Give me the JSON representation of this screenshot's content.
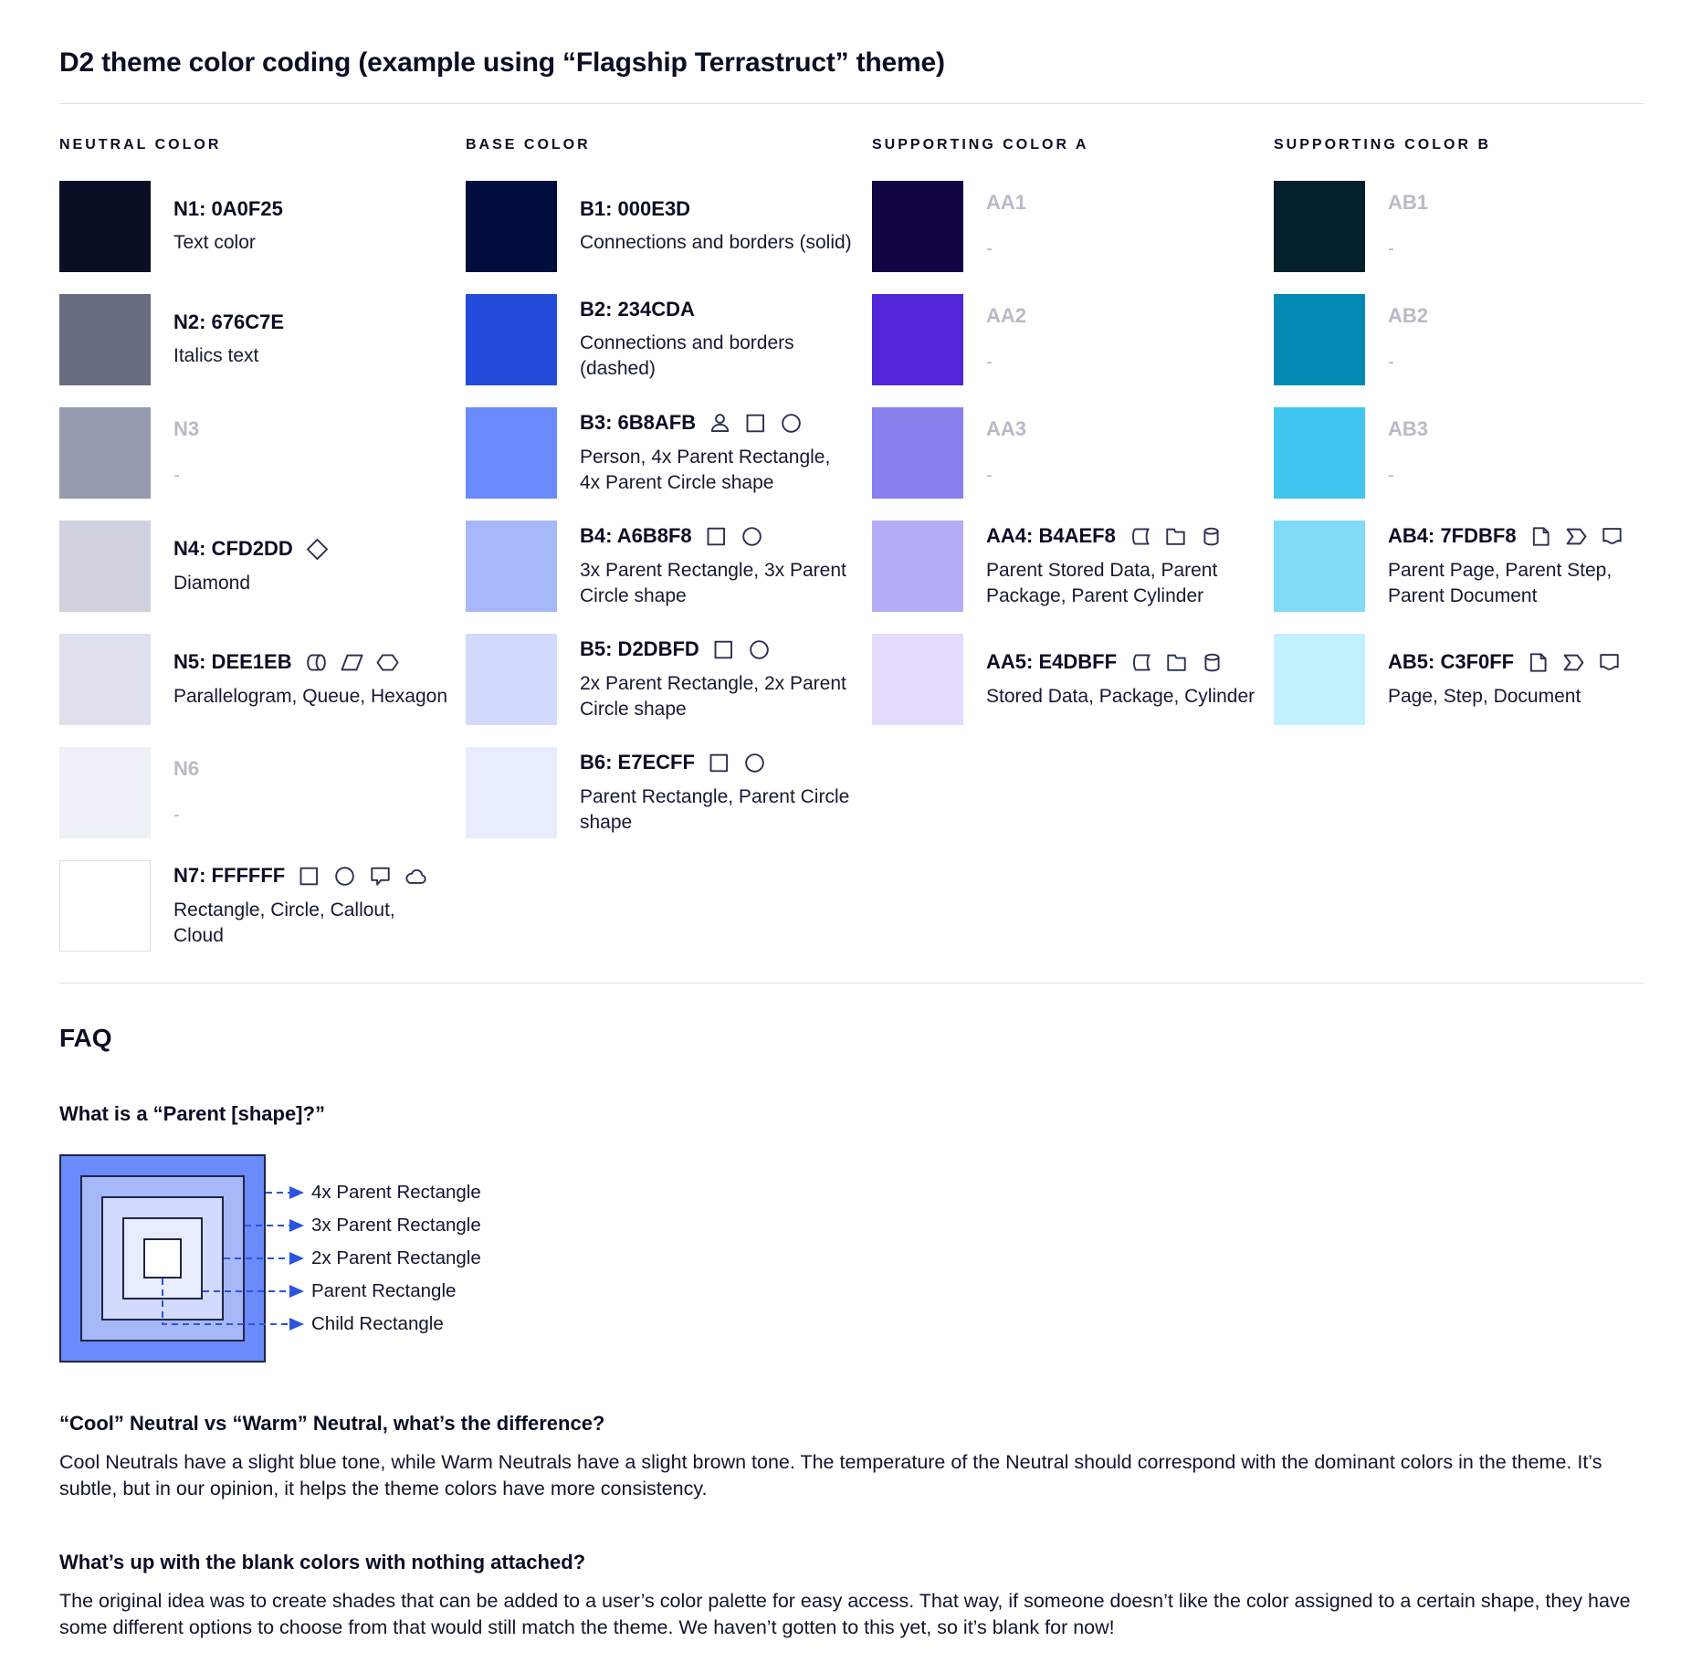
{
  "page": {
    "title": "D2 theme color coding (example using “Flagship Terrastruct” theme)"
  },
  "columns": [
    {
      "header": "NEUTRAL COLOR",
      "swatches": [
        {
          "label": "N1: 0A0F25",
          "hex": "#0A0F25",
          "description": "Text color",
          "icons": []
        },
        {
          "label": "N2: 676C7E",
          "hex": "#676C7E",
          "description": "Italics text",
          "icons": []
        },
        {
          "label": "N3",
          "hex": "#949BAE",
          "description": "-",
          "icons": [],
          "blank": true
        },
        {
          "label": "N4: CFD2DD",
          "hex": "#CFD2DD",
          "description": "Diamond",
          "icons": [
            "diamond"
          ]
        },
        {
          "label": "N5: DEE1EB",
          "hex": "#DEE1EB",
          "description": "Parallelogram, Queue, Hexagon",
          "icons": [
            "queue",
            "parallelogram",
            "hexagon"
          ]
        },
        {
          "label": "N6",
          "hex": "#EDF0F7",
          "description": "-",
          "icons": [],
          "blank": true
        },
        {
          "label": "N7: FFFFFF",
          "hex": "#FFFFFF",
          "description": "Rectangle, Circle, Callout, Cloud",
          "icons": [
            "rectangle",
            "circle",
            "callout",
            "cloud"
          ],
          "bordered": true
        }
      ]
    },
    {
      "header": "BASE COLOR",
      "swatches": [
        {
          "label": "B1: 000E3D",
          "hex": "#000E3D",
          "description": "Connections and borders (solid)",
          "icons": []
        },
        {
          "label": "B2: 234CDA",
          "hex": "#234CDA",
          "description": "Connections and borders (dashed)",
          "icons": []
        },
        {
          "label": "B3: 6B8AFB",
          "hex": "#6B8AFB",
          "description": "Person, 4x Parent Rectangle, 4x Parent Circle shape",
          "icons": [
            "person",
            "rectangle",
            "circle"
          ]
        },
        {
          "label": "B4: A6B8F8",
          "hex": "#A6B8F8",
          "description": "3x Parent Rectangle, 3x Parent Circle shape",
          "icons": [
            "rectangle",
            "circle"
          ]
        },
        {
          "label": "B5: D2DBFD",
          "hex": "#D2DBFD",
          "description": "2x Parent Rectangle, 2x Parent Circle shape",
          "icons": [
            "rectangle",
            "circle"
          ]
        },
        {
          "label": "B6: E7ECFF",
          "hex": "#E7ECFF",
          "description": "Parent Rectangle, Parent Circle shape",
          "icons": [
            "rectangle",
            "circle"
          ]
        }
      ]
    },
    {
      "header": "SUPPORTING COLOR A",
      "swatches": [
        {
          "label": "AA1",
          "hex": "#110643",
          "description": "-",
          "icons": [],
          "blank": true
        },
        {
          "label": "AA2",
          "hex": "#5226D9",
          "description": "-",
          "icons": [],
          "blank": true
        },
        {
          "label": "AA3",
          "hex": "#8880ED",
          "description": "-",
          "icons": [],
          "blank": true
        },
        {
          "label": "AA4: B4AEF8",
          "hex": "#B4AEF8",
          "description": "Parent Stored Data, Parent Package,  Parent Cylinder",
          "icons": [
            "stored-data",
            "package",
            "cylinder"
          ]
        },
        {
          "label": "AA5: E4DBFF",
          "hex": "#E4DBFF",
          "description": "Stored Data, Package, Cylinder",
          "icons": [
            "stored-data",
            "package",
            "cylinder"
          ]
        }
      ]
    },
    {
      "header": "SUPPORTING COLOR B",
      "swatches": [
        {
          "label": "AB1",
          "hex": "#03202A",
          "description": "-",
          "icons": [],
          "blank": true
        },
        {
          "label": "AB2",
          "hex": "#0289B4",
          "description": "-",
          "icons": [],
          "blank": true
        },
        {
          "label": "AB3",
          "hex": "#41C6EF",
          "description": "-",
          "icons": [],
          "blank": true
        },
        {
          "label": "AB4: 7FDBF8",
          "hex": "#7FDBF8",
          "description": "Parent Page, Parent Step, Parent Document",
          "icons": [
            "page",
            "step",
            "document"
          ]
        },
        {
          "label": "AB5: C3F0FF",
          "hex": "#C3F0FF",
          "description": "Page, Step, Document",
          "icons": [
            "page",
            "step",
            "document"
          ]
        }
      ]
    }
  ],
  "faq": {
    "heading": "FAQ",
    "q1": "What is a “Parent [shape]?”",
    "diagram": {
      "layer_colors": [
        "#6B8AFB",
        "#A6B8F8",
        "#D2DBFD",
        "#E7ECFF",
        "#FFFFFF"
      ],
      "border_color": "#1E2546",
      "line_color": "#2D54E0",
      "labels": [
        "4x Parent Rectangle",
        "3x Parent Rectangle",
        "2x Parent Rectangle",
        "Parent Rectangle",
        "Child Rectangle"
      ]
    },
    "q2": "“Cool” Neutral vs “Warm” Neutral, what’s the difference?",
    "a2": "Cool Neutrals have a slight blue tone, while Warm Neutrals have a slight brown tone. The temperature of the Neutral should correspond with the dominant colors in the theme. It’s subtle, but in our opinion, it helps the theme colors have more consistency.",
    "q3": "What’s up with the blank colors with nothing attached?",
    "a3": "The original idea was to create shades that can be added to a user’s color palette for easy access. That way, if someone doesn’t like the color assigned to a certain shape, they have some different options to choose from that would still match the theme. We haven’t gotten to this yet, so it’s blank for now!"
  },
  "colors": {
    "text": "#0A0F25",
    "muted_label": "#B7BBC7",
    "divider": "#DADFE9",
    "icon_stroke": "#2A3150",
    "dashed_line": "#2D54E0"
  }
}
